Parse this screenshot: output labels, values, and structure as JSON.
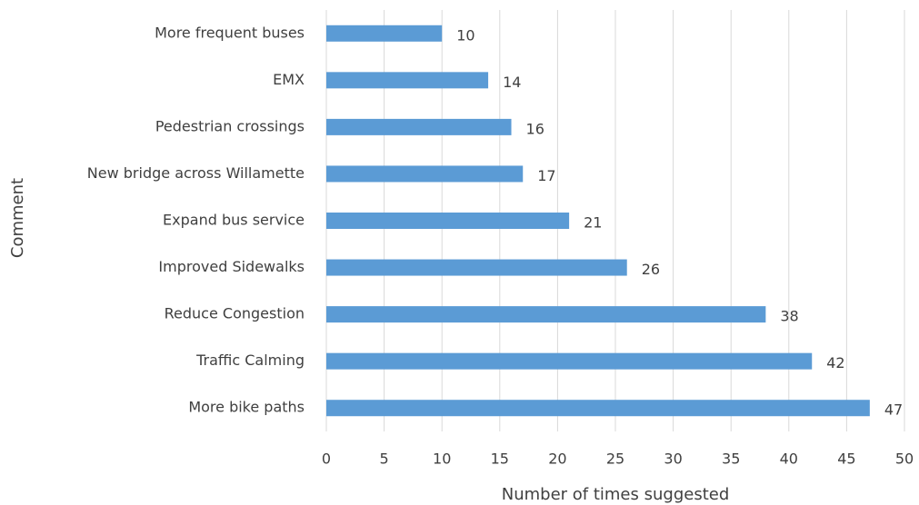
{
  "chart_data": {
    "type": "bar",
    "orientation": "horizontal",
    "x_label": "Number of times suggested",
    "y_label": "Comment",
    "categories": [
      "More frequent buses",
      "EMX",
      "Pedestrian crossings",
      "New bridge across Willamette",
      "Expand bus service",
      "Improved Sidewalks",
      "Reduce Congestion",
      "Traffic Calming",
      "More bike paths"
    ],
    "values": [
      10,
      14,
      16,
      17,
      21,
      26,
      38,
      42,
      47
    ],
    "color": "#5b9bd5",
    "xlim": [
      0,
      50
    ],
    "xticks": [
      0,
      5,
      10,
      15,
      20,
      25,
      30,
      35,
      40,
      45,
      50
    ],
    "grid": true
  }
}
